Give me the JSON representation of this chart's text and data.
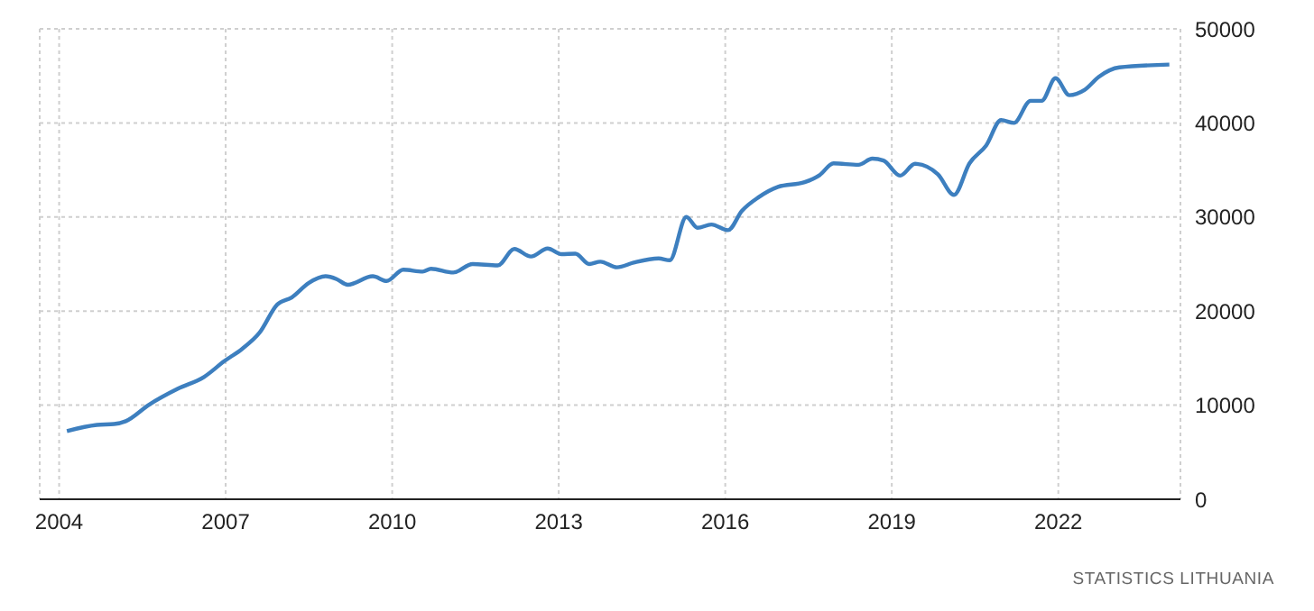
{
  "chart_data": {
    "type": "line",
    "x": [
      2004.14,
      2004.68,
      2004.99,
      2005.2,
      2005.62,
      2006.14,
      2006.61,
      2006.98,
      2007.3,
      2007.61,
      2007.93,
      2008.19,
      2008.5,
      2008.8,
      2009.0,
      2009.2,
      2009.65,
      2009.9,
      2010.2,
      2010.55,
      2010.7,
      2011.1,
      2011.45,
      2011.9,
      2012.2,
      2012.5,
      2012.8,
      2013.05,
      2013.3,
      2013.55,
      2013.75,
      2014.05,
      2014.35,
      2014.8,
      2015.0,
      2015.3,
      2015.5,
      2015.75,
      2016.05,
      2016.3,
      2016.6,
      2016.95,
      2017.43,
      2017.7,
      2017.95,
      2018.4,
      2018.65,
      2018.85,
      2019.15,
      2019.42,
      2019.83,
      2020.12,
      2020.4,
      2020.7,
      2020.97,
      2021.2,
      2021.5,
      2021.7,
      2021.95,
      2022.2,
      2022.47,
      2022.73,
      2023.1,
      2024.0
    ],
    "series": [
      {
        "color": "#3d7fbf",
        "values": [
          7250,
          7900,
          8000,
          8300,
          10050,
          11750,
          13000,
          14700,
          16000,
          17700,
          20700,
          21450,
          23000,
          23700,
          23400,
          22800,
          23700,
          23200,
          24400,
          24200,
          24500,
          24100,
          25000,
          24850,
          26600,
          25800,
          26650,
          26050,
          26100,
          25000,
          25250,
          24650,
          25150,
          25600,
          25400,
          30000,
          28850,
          29200,
          28600,
          30650,
          32100,
          33200,
          33700,
          34450,
          35700,
          35550,
          36200,
          36000,
          34400,
          35650,
          34550,
          32350,
          35700,
          37600,
          40300,
          40000,
          42350,
          42350,
          44750,
          42950,
          43500,
          44900,
          45900,
          46200
        ]
      }
    ],
    "xlim": [
      2003.65,
      2024.2
    ],
    "xticks": [
      2004,
      2007,
      2010,
      2013,
      2016,
      2019,
      2022
    ],
    "ylim": [
      0,
      50000
    ],
    "yticks": [
      0,
      10000,
      20000,
      30000,
      40000,
      50000
    ],
    "grid": true,
    "legend": false,
    "marker": "none",
    "line_style": "solid",
    "annotations": [
      "STATISTICS LITHUANIA"
    ]
  }
}
